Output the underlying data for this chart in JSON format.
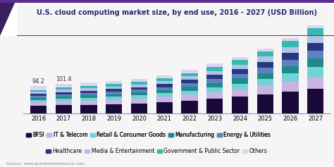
{
  "title": "U.S. cloud computing market size, by end use, 2016 - 2027 (USD Billion)",
  "years": [
    2016,
    2017,
    2018,
    2019,
    2020,
    2021,
    2022,
    2023,
    2024,
    2025,
    2026,
    2027
  ],
  "annotations": {
    "2016": "94.2",
    "2017": "101.4"
  },
  "source": "Source: www.grandviewresearch.com",
  "segments": [
    {
      "label": "BFSI",
      "color": "#1a0a3c",
      "values": [
        26,
        28,
        30,
        32,
        35,
        39,
        44,
        50,
        57,
        65,
        74,
        84
      ]
    },
    {
      "label": "IT & Telecom",
      "color": "#c8b4e0",
      "values": [
        12,
        13,
        14,
        15,
        16,
        18,
        20,
        23,
        26,
        30,
        35,
        41
      ]
    },
    {
      "label": "Retail & Consumer Goods",
      "color": "#70d4d4",
      "values": [
        8,
        9,
        10,
        10,
        11,
        12,
        14,
        16,
        19,
        22,
        27,
        32
      ]
    },
    {
      "label": "Manufacturing",
      "color": "#1e8a8a",
      "values": [
        7,
        8,
        8,
        9,
        10,
        11,
        13,
        15,
        17,
        20,
        24,
        29
      ]
    },
    {
      "label": "Energy & Utilities",
      "color": "#6080c0",
      "values": [
        7,
        8,
        8,
        9,
        9,
        10,
        12,
        14,
        16,
        19,
        23,
        27
      ]
    },
    {
      "label": "Healthcare",
      "color": "#283880",
      "values": [
        7,
        7,
        8,
        8,
        9,
        10,
        12,
        14,
        16,
        19,
        22,
        26
      ]
    },
    {
      "label": "Media & Entertainment",
      "color": "#b0c4e8",
      "values": [
        7,
        8,
        8,
        9,
        9,
        10,
        11,
        13,
        15,
        18,
        21,
        25
      ]
    },
    {
      "label": "Government & Public Sector",
      "color": "#38b8b0",
      "values": [
        6,
        7,
        7,
        8,
        8,
        9,
        11,
        13,
        15,
        17,
        21,
        25
      ]
    },
    {
      "label": "Others",
      "color": "#dcd4f0",
      "values": [
        14,
        13,
        12,
        11,
        11,
        11,
        11,
        11,
        11,
        10,
        10,
        10
      ]
    }
  ],
  "background_color": "#f5f5f5",
  "plot_bg": "#f5f5f5",
  "title_color": "#2a2a6a",
  "title_fontsize": 7.0,
  "legend_fontsize": 5.5,
  "tick_fontsize": 6.0,
  "ylim": [
    0,
    340
  ],
  "figsize": [
    4.74,
    2.37
  ],
  "dpi": 100
}
